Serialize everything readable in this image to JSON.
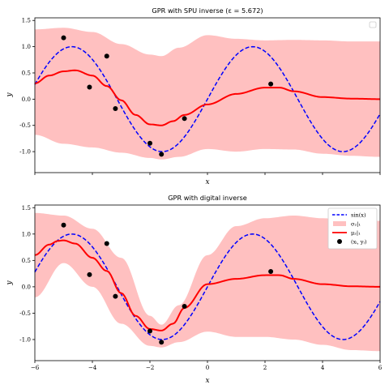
{
  "chart_data": [
    {
      "type": "line",
      "title": "GPR with SPU inverse (ε = 5.672)",
      "xlabel": "x",
      "ylabel": "y",
      "xlim": [
        -6,
        6
      ],
      "ylim": [
        -1.4,
        1.55
      ],
      "x_ticks": [],
      "y_ticks": [
        "-1.0",
        "-0.5",
        "0.0",
        "0.5",
        "1.0",
        "1.5"
      ],
      "legend": "top-right",
      "series": [
        {
          "kind": "true_function",
          "function": "sin",
          "color": "#0000ff",
          "style": "dashed"
        },
        {
          "kind": "band",
          "color": "#ffc0c0",
          "x": [
            -6,
            -5,
            -4,
            -3,
            -2,
            -1.6,
            -1,
            0,
            1,
            2,
            3,
            4,
            5,
            6
          ],
          "upper": [
            1.33,
            1.36,
            1.28,
            1.05,
            0.85,
            0.82,
            0.98,
            1.22,
            1.15,
            1.12,
            1.13,
            1.12,
            1.1,
            1.1
          ],
          "lower": [
            -0.68,
            -0.85,
            -0.92,
            -1.02,
            -1.12,
            -1.15,
            -1.1,
            -0.95,
            -1.0,
            -0.95,
            -0.96,
            -1.04,
            -1.08,
            -1.1
          ]
        },
        {
          "kind": "mean",
          "color": "#ff0000",
          "x": [
            -6,
            -5.5,
            -5,
            -4.6,
            -4,
            -3.5,
            -3,
            -2.5,
            -2,
            -1.6,
            -1.2,
            -0.8,
            0,
            1,
            2,
            2.5,
            3,
            4,
            5,
            6
          ],
          "y": [
            0.3,
            0.45,
            0.53,
            0.55,
            0.45,
            0.25,
            -0.02,
            -0.3,
            -0.48,
            -0.5,
            -0.42,
            -0.3,
            -0.1,
            0.1,
            0.22,
            0.22,
            0.15,
            0.04,
            0.01,
            0.0
          ]
        },
        {
          "kind": "points",
          "color": "#000000",
          "x": [
            -5.0,
            -4.1,
            -3.5,
            -3.2,
            -2.0,
            -1.6,
            -0.8,
            2.2
          ],
          "y": [
            1.17,
            0.23,
            0.82,
            -0.18,
            -0.84,
            -1.05,
            -0.37,
            0.29
          ]
        }
      ],
      "legend_entries": []
    },
    {
      "type": "line",
      "title": "GPR with digital inverse",
      "xlabel": "x",
      "ylabel": "y",
      "xlim": [
        -6,
        6
      ],
      "ylim": [
        -1.4,
        1.55
      ],
      "x_ticks": [
        "−6",
        "−4",
        "−2",
        "0",
        "2",
        "4",
        "6"
      ],
      "y_ticks": [
        "-1.0",
        "-0.5",
        "0.0",
        "0.5",
        "1.0",
        "1.5"
      ],
      "legend": "top-right",
      "series": [
        {
          "kind": "true_function",
          "function": "sin",
          "color": "#0000ff",
          "style": "dashed"
        },
        {
          "kind": "band",
          "color": "#ffc0c0",
          "x": [
            -6,
            -5,
            -4,
            -3,
            -2,
            -1.6,
            -1,
            0,
            1,
            2,
            3,
            4,
            5,
            6
          ],
          "upper": [
            1.4,
            1.35,
            1.1,
            0.55,
            -0.55,
            -0.72,
            -0.35,
            0.6,
            1.15,
            1.3,
            1.35,
            1.3,
            1.25,
            1.25
          ],
          "lower": [
            -0.2,
            0.45,
            0.0,
            -0.7,
            -1.12,
            -1.15,
            -1.05,
            -0.85,
            -0.95,
            -0.95,
            -1.0,
            -1.1,
            -1.2,
            -1.22
          ]
        },
        {
          "kind": "mean",
          "color": "#ff0000",
          "x": [
            -6,
            -5.5,
            -5.2,
            -5,
            -4.6,
            -4,
            -3.5,
            -3,
            -2.5,
            -2,
            -1.6,
            -1.2,
            -0.8,
            0,
            1,
            2,
            2.5,
            3,
            4,
            5,
            6
          ],
          "y": [
            0.6,
            0.8,
            0.87,
            0.88,
            0.82,
            0.55,
            0.3,
            -0.12,
            -0.55,
            -0.8,
            -0.83,
            -0.7,
            -0.4,
            0.05,
            0.15,
            0.22,
            0.22,
            0.15,
            0.05,
            0.01,
            0.0
          ]
        },
        {
          "kind": "points",
          "color": "#000000",
          "x": [
            -5.0,
            -4.1,
            -3.5,
            -3.2,
            -2.0,
            -1.6,
            -0.8,
            2.2
          ],
          "y": [
            1.17,
            0.23,
            0.82,
            -0.18,
            -0.84,
            -1.05,
            -0.37,
            0.29
          ]
        }
      ],
      "legend_entries": [
        "sin(x)",
        "σ₂|₁",
        "μ₂|₁",
        "(xᵢ, yᵢ)"
      ]
    }
  ]
}
